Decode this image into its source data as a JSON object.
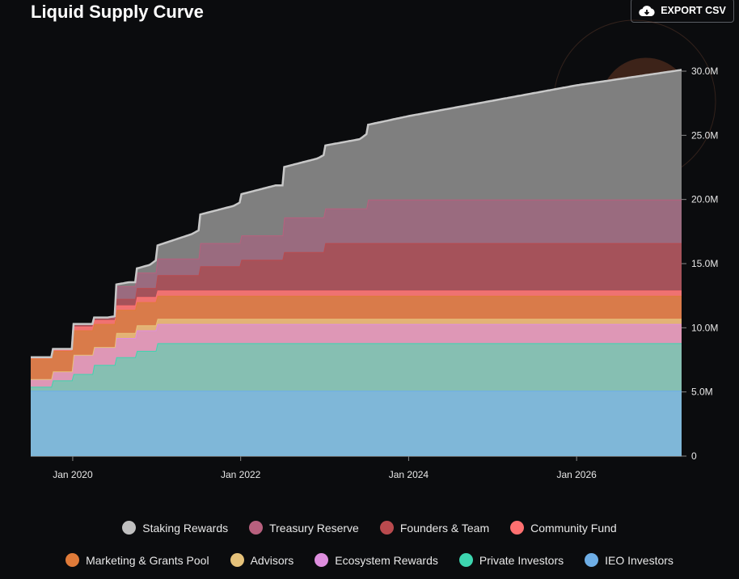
{
  "title": "Liquid Supply Curve",
  "export_button": {
    "label": "EXPORT CSV",
    "icon": "cloud-download-icon"
  },
  "chart_data": {
    "type": "area",
    "stacked": true,
    "interpolation": "step",
    "title": "Liquid Supply Curve",
    "x_range": [
      "2019-07",
      "2027-04"
    ],
    "x_ticks": [
      {
        "date": "2020-01",
        "label": "Jan 2020"
      },
      {
        "date": "2022-01",
        "label": "Jan 2022"
      },
      {
        "date": "2024-01",
        "label": "Jan 2024"
      },
      {
        "date": "2026-01",
        "label": "Jan 2026"
      }
    ],
    "ylim": [
      0,
      30000000
    ],
    "y_ticks": [
      {
        "value": 0,
        "label": "0"
      },
      {
        "value": 5000000,
        "label": "5.0M"
      },
      {
        "value": 10000000,
        "label": "10.0M"
      },
      {
        "value": 15000000,
        "label": "15.0M"
      },
      {
        "value": 20000000,
        "label": "20.0M"
      },
      {
        "value": 25000000,
        "label": "25.0M"
      },
      {
        "value": 30000000,
        "label": "30.0M"
      }
    ],
    "legend_position": "bottom",
    "dates": [
      "2019-07",
      "2019-10",
      "2020-01",
      "2020-04",
      "2020-07",
      "2020-10",
      "2021-01",
      "2021-07",
      "2022-01",
      "2022-07",
      "2023-01",
      "2023-07"
    ],
    "series": [
      {
        "name": "IEO Investors",
        "color": "#6eaee6",
        "fill": "#7fb7d8",
        "values_millions": [
          5.1,
          5.1,
          5.1,
          5.1,
          5.1,
          5.1,
          5.1,
          5.1,
          5.1,
          5.1,
          5.1,
          5.1
        ]
      },
      {
        "name": "Private Investors",
        "color": "#3dd6b0",
        "fill": "#86bfb2",
        "values_millions": [
          0.3,
          0.8,
          1.3,
          2.0,
          2.6,
          3.1,
          3.7,
          3.7,
          3.7,
          3.7,
          3.7,
          3.7
        ]
      },
      {
        "name": "Ecosystem Rewards",
        "color": "#de8ede",
        "fill": "#de97b6",
        "values_millions": [
          0.6,
          0.7,
          1.5,
          1.4,
          1.5,
          1.6,
          1.5,
          1.5,
          1.5,
          1.5,
          1.5,
          1.5
        ]
      },
      {
        "name": "Advisors",
        "color": "#e6c27a",
        "fill": "#e3b276",
        "values_millions": [
          0,
          0,
          0,
          0,
          0.4,
          0.4,
          0.4,
          0.4,
          0.4,
          0.4,
          0.4,
          0.4
        ]
      },
      {
        "name": "Marketing & Grants Pool",
        "color": "#e07b39",
        "fill": "#d97b4a",
        "values_millions": [
          1.6,
          1.6,
          1.9,
          1.8,
          1.8,
          1.8,
          1.8,
          1.8,
          1.8,
          1.8,
          1.8,
          1.8
        ]
      },
      {
        "name": "Community Fund",
        "color": "#ff7070",
        "fill": "#ef7272",
        "values_millions": [
          0.1,
          0.15,
          0.3,
          0.3,
          0.35,
          0.4,
          0.4,
          0.4,
          0.4,
          0.4,
          0.4,
          0.4
        ]
      },
      {
        "name": "Founders & Team",
        "color": "#b94a4e",
        "fill": "#a5525a",
        "values_millions": [
          0,
          0,
          0.2,
          0.2,
          0.5,
          0.7,
          1.2,
          1.9,
          2.4,
          3.0,
          3.7,
          3.7
        ]
      },
      {
        "name": "Treasury Reserve",
        "color": "#b8607e",
        "fill": "#9a6b7f",
        "values_millions": [
          0,
          0,
          0,
          0,
          1.0,
          1.2,
          1.3,
          1.8,
          1.9,
          2.7,
          2.7,
          3.4
        ]
      },
      {
        "name": "Staking Rewards",
        "color": "#c8c8c8",
        "fill": "#7f7f7f",
        "interpolation": "linear",
        "points_millions": [
          [
            "2019-07",
            0
          ],
          [
            "2020-06",
            0
          ],
          [
            "2020-07",
            0.1
          ],
          [
            "2020-09",
            0.3
          ],
          [
            "2020-10",
            0.3
          ],
          [
            "2020-12",
            0.6
          ],
          [
            "2021-01",
            1.0
          ],
          [
            "2021-06",
            1.9
          ],
          [
            "2021-07",
            2.2
          ],
          [
            "2021-12",
            2.9
          ],
          [
            "2022-01",
            3.2
          ],
          [
            "2022-06",
            3.9
          ],
          [
            "2022-07",
            3.9
          ],
          [
            "2022-12",
            4.6
          ],
          [
            "2023-01",
            4.9
          ],
          [
            "2023-06",
            5.4
          ],
          [
            "2023-07",
            5.8
          ],
          [
            "2024-01",
            6.5
          ],
          [
            "2025-01",
            7.7
          ],
          [
            "2026-01",
            8.9
          ],
          [
            "2027-04",
            10.1
          ]
        ]
      }
    ]
  },
  "legend": {
    "row1": [
      {
        "label": "Staking Rewards",
        "color": "#c0c0c0"
      },
      {
        "label": "Treasury Reserve",
        "color": "#b8607e"
      },
      {
        "label": "Founders & Team",
        "color": "#b94a4e"
      },
      {
        "label": "Community Fund",
        "color": "#ff7070"
      }
    ],
    "row2": [
      {
        "label": "Marketing & Grants Pool",
        "color": "#e07b39"
      },
      {
        "label": "Advisors",
        "color": "#e6c27a"
      },
      {
        "label": "Ecosystem Rewards",
        "color": "#de8ede"
      },
      {
        "label": "Private Investors",
        "color": "#3dd6b0"
      },
      {
        "label": "IEO Investors",
        "color": "#6eaee6"
      }
    ]
  }
}
